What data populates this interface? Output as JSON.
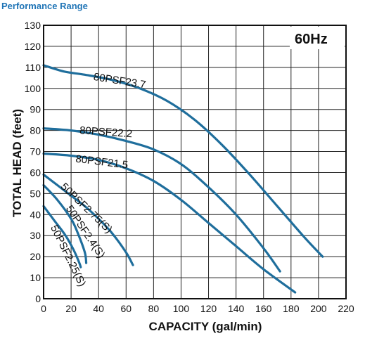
{
  "header": {
    "title": "Performance Range"
  },
  "chart_data": {
    "type": "line",
    "title": "",
    "annotation": "60Hz",
    "xlabel": "CAPACITY (gal/min)",
    "ylabel": "TOTAL HEAD (feet)",
    "xlim": [
      0,
      220
    ],
    "ylim": [
      0,
      130
    ],
    "xticks": [
      0,
      20,
      40,
      60,
      80,
      100,
      120,
      140,
      160,
      180,
      200,
      220
    ],
    "yticks": [
      0,
      10,
      20,
      30,
      40,
      50,
      60,
      70,
      80,
      90,
      100,
      110,
      120,
      130
    ],
    "grid": "both",
    "line_color": "#1f6e9c",
    "series": [
      {
        "name": "80PSF23.7",
        "x": [
          0,
          15,
          30,
          50,
          70,
          90,
          110,
          130,
          150,
          170,
          190,
          203
        ],
        "y": [
          111,
          108,
          106.5,
          104,
          100,
          94,
          85,
          73,
          59,
          44,
          29,
          20
        ]
      },
      {
        "name": "80PSF22.2",
        "x": [
          0,
          20,
          40,
          60,
          80,
          100,
          120,
          140,
          160,
          172
        ],
        "y": [
          81,
          80,
          78,
          75,
          71,
          64,
          53,
          40,
          24,
          13
        ]
      },
      {
        "name": "80PSF21.5",
        "x": [
          0,
          20,
          40,
          60,
          80,
          100,
          120,
          140,
          160,
          183
        ],
        "y": [
          69,
          68,
          66,
          62,
          56,
          47,
          36,
          25,
          14,
          3
        ]
      },
      {
        "name": "50PSF2.75(S)",
        "x": [
          0,
          10,
          20,
          30,
          40,
          50,
          60,
          65
        ],
        "y": [
          59,
          54,
          49,
          44,
          38,
          31,
          22,
          16
        ]
      },
      {
        "name": "50PSF2.4(S)",
        "x": [
          0,
          10,
          20,
          25,
          30,
          31
        ],
        "y": [
          54,
          47,
          38,
          31,
          22,
          17
        ]
      },
      {
        "name": "50PSF2.25(S)",
        "x": [
          0,
          8,
          16,
          22,
          26,
          27
        ],
        "y": [
          44,
          37,
          30,
          23,
          17,
          15
        ]
      }
    ]
  }
}
